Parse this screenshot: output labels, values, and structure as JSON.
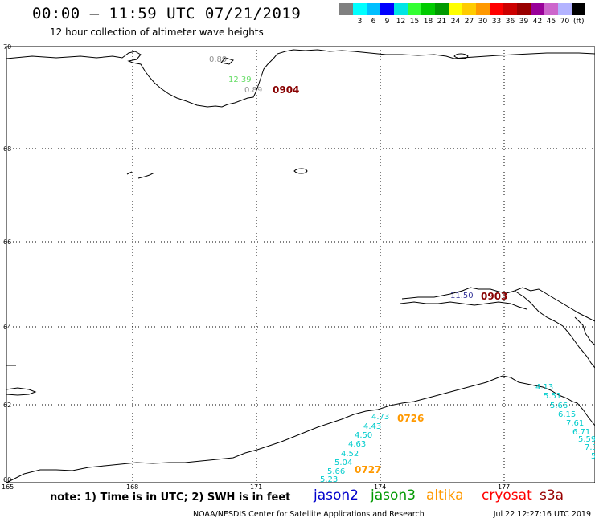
{
  "title": "00:00 – 11:59 UTC 07/21/2019",
  "subtitle": "12 hour collection of altimeter wave heights",
  "scale": {
    "colors": [
      "#808080",
      "#00ffff",
      "#00bfff",
      "#0000ff",
      "#00e5e5",
      "#33ff33",
      "#00cc00",
      "#009900",
      "#ffff00",
      "#ffcc00",
      "#ff9900",
      "#ff0000",
      "#cc0000",
      "#990000",
      "#990099",
      "#cc66cc",
      "#b3b3ff",
      "#000000"
    ],
    "labels": [
      "3",
      "6",
      "9",
      "12",
      "15",
      "18",
      "21",
      "24",
      "27",
      "30",
      "33",
      "36",
      "39",
      "42",
      "45",
      "70"
    ],
    "unit": "(ft)"
  },
  "latitude_labels": [
    "70",
    "68",
    "66",
    "64",
    "62",
    "60"
  ],
  "longitude_labels": [
    "165",
    "168",
    "171",
    "174",
    "177"
  ],
  "swh_points": [
    {
      "text": "0.89",
      "color": "#909090"
    },
    {
      "text": "12.39",
      "color": "#66dd66"
    },
    {
      "text": "0.89",
      "color": "#909090"
    },
    {
      "text": "11.50",
      "color": "#333399"
    },
    {
      "text": "4.73",
      "color": "#00cccc"
    },
    {
      "text": "4.43",
      "color": "#00cccc"
    },
    {
      "text": "4.50",
      "color": "#00cccc"
    },
    {
      "text": "4.63",
      "color": "#00cccc"
    },
    {
      "text": "4.52",
      "color": "#00cccc"
    },
    {
      "text": "5.04",
      "color": "#00cccc"
    },
    {
      "text": "5.66",
      "color": "#00cccc"
    },
    {
      "text": "5.23",
      "color": "#00cccc"
    },
    {
      "text": "4.13",
      "color": "#00cccc"
    },
    {
      "text": "5.51",
      "color": "#00cccc"
    },
    {
      "text": "5.66",
      "color": "#00cccc"
    },
    {
      "text": "6.15",
      "color": "#00cccc"
    },
    {
      "text": "7.61",
      "color": "#00cccc"
    },
    {
      "text": "6.71",
      "color": "#00cccc"
    },
    {
      "text": "5.59",
      "color": "#00cccc"
    },
    {
      "text": "7.3",
      "color": "#00cccc"
    },
    {
      "text": "5",
      "color": "#00cccc"
    }
  ],
  "time_labels": [
    {
      "text": "0904",
      "color": "#880000"
    },
    {
      "text": "0903",
      "color": "#880000"
    },
    {
      "text": "0726",
      "color": "#ff9900"
    },
    {
      "text": "0727",
      "color": "#ff9900"
    }
  ],
  "note": "note:  1) Time is in UTC;  2) SWH is in feet",
  "legend": [
    {
      "name": "jason2",
      "color": "#0000cc"
    },
    {
      "name": "jason3",
      "color": "#009900"
    },
    {
      "name": "altika",
      "color": "#ff9900"
    },
    {
      "name": "cryosat",
      "color": "#ff0000"
    },
    {
      "name": "s3a",
      "color": "#990000"
    }
  ],
  "footer": {
    "source": "NOAA/NESDIS Center for Satellite Applications and Research",
    "timestamp": "Jul 22 12:27:16 UTC 2019"
  }
}
